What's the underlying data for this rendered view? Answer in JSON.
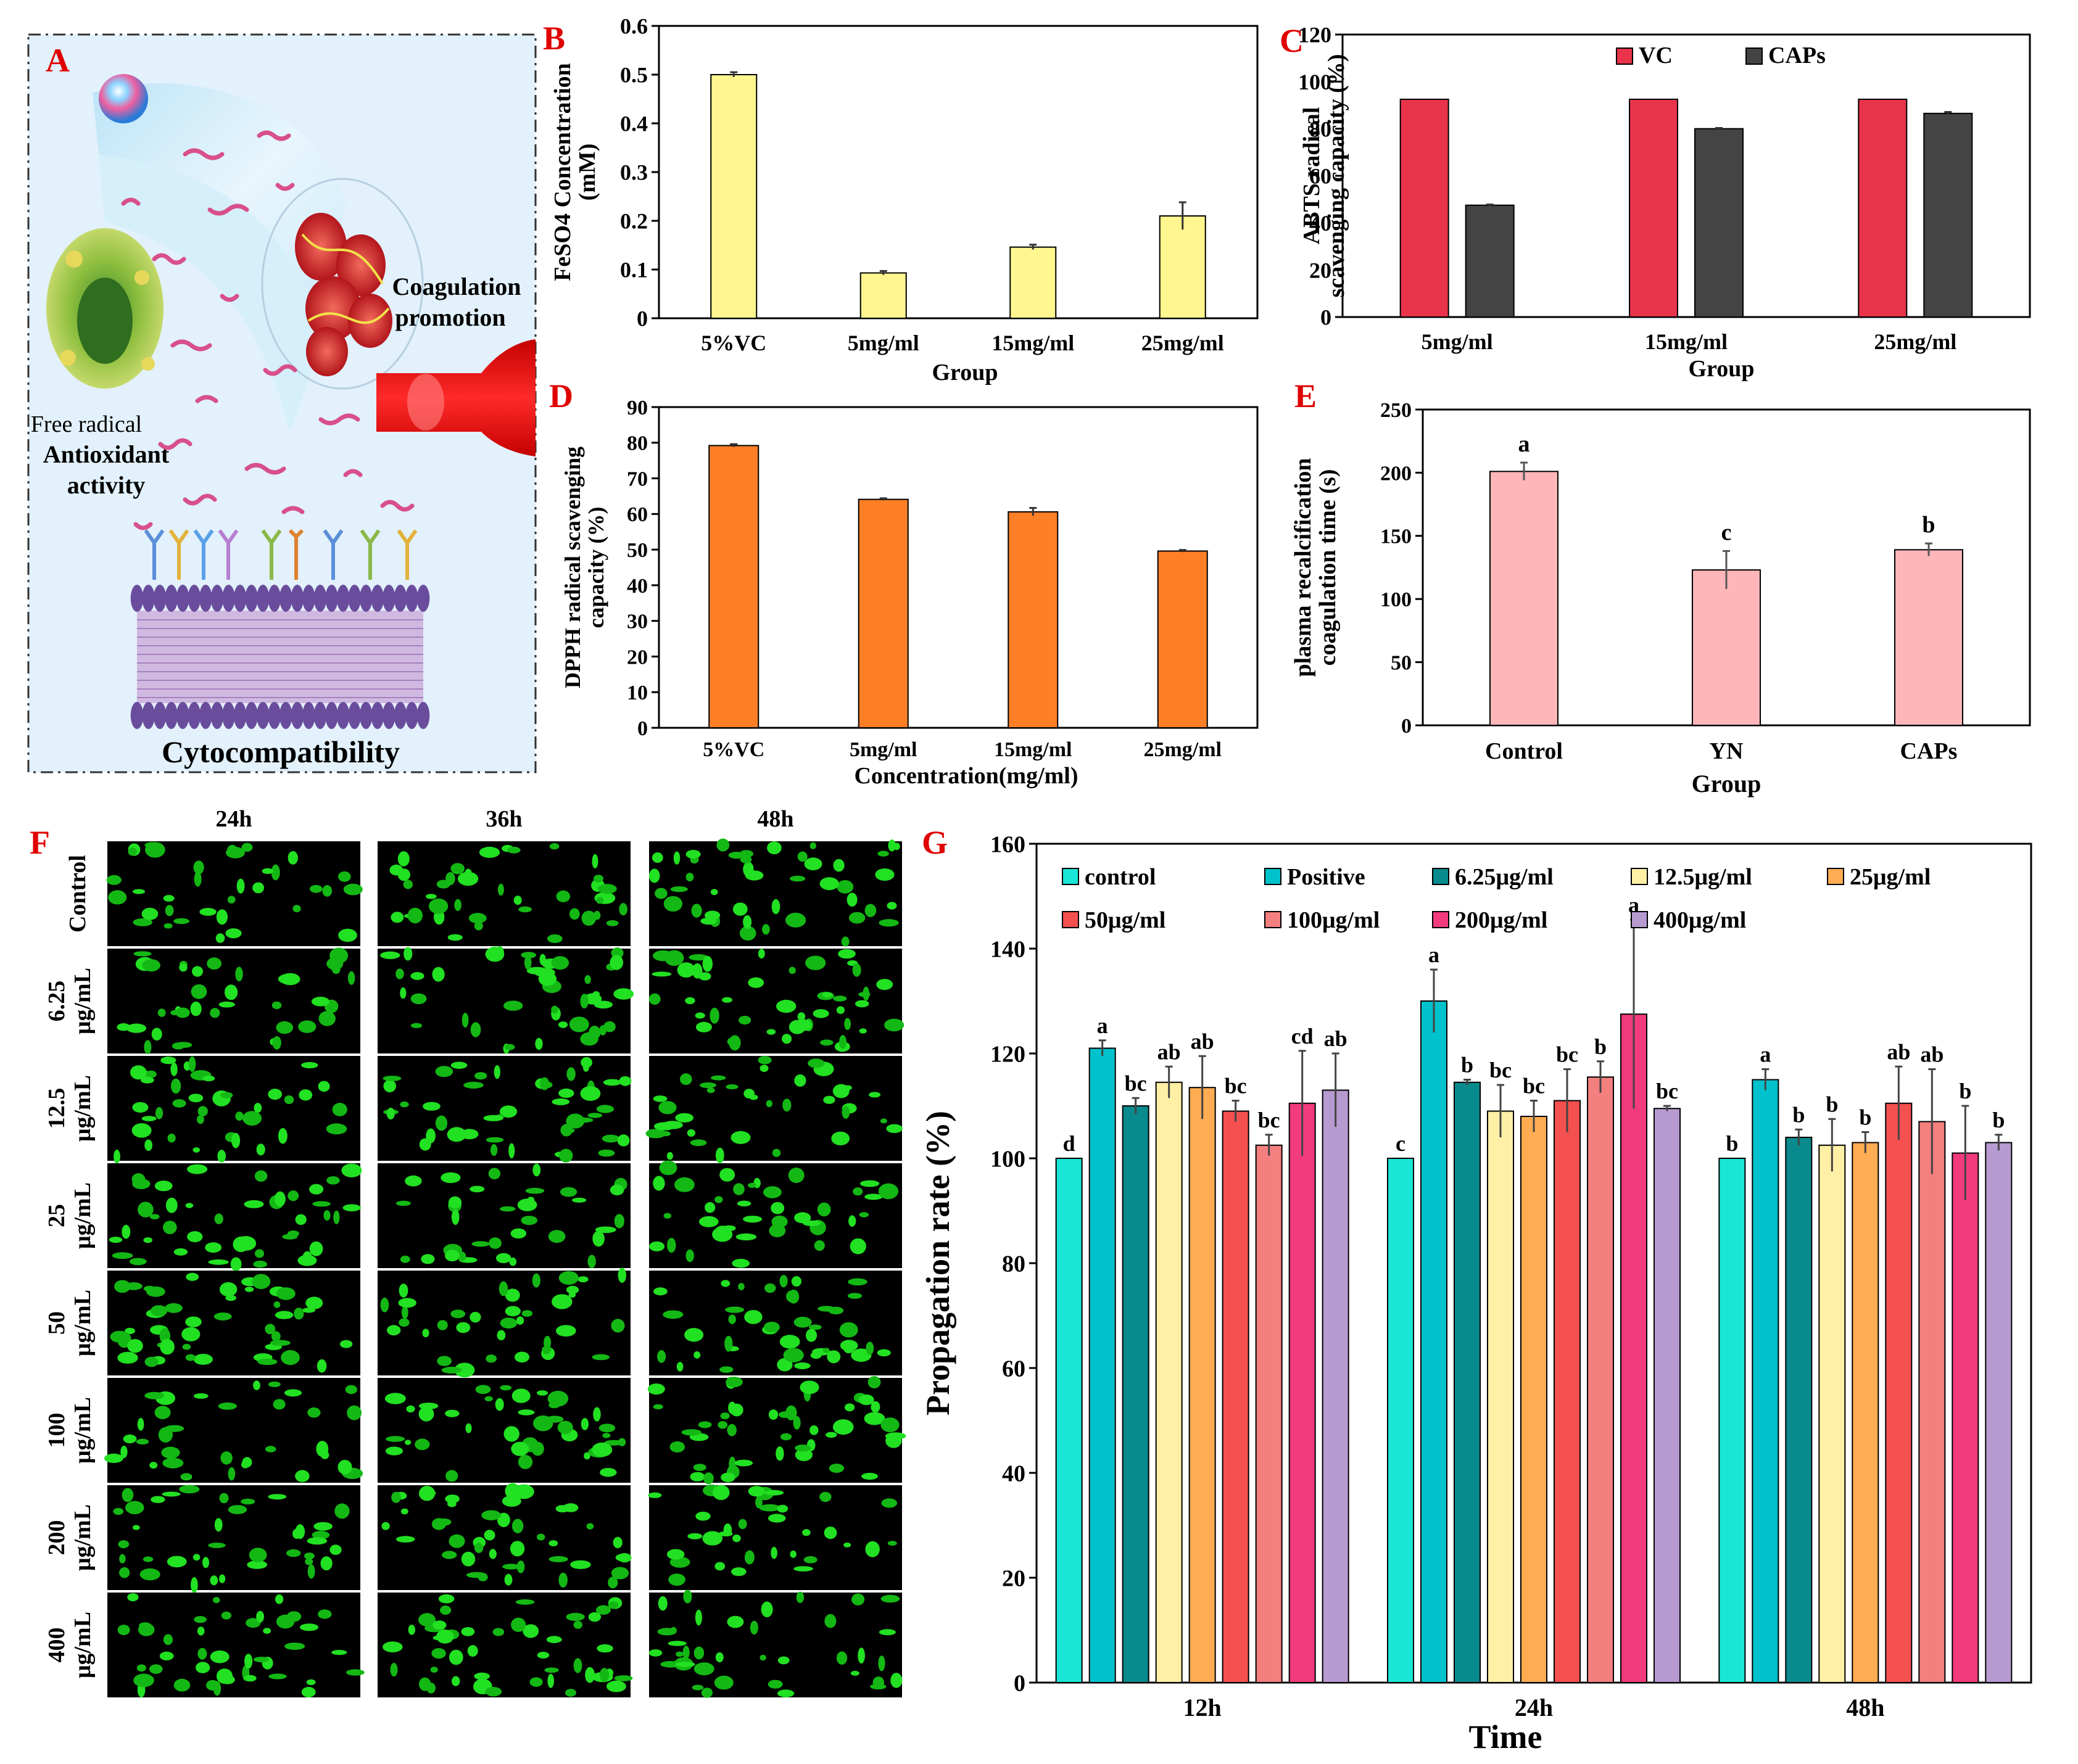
{
  "panel_a": {
    "letter": "A",
    "label_coagulation_1": "Coagulation",
    "label_coagulation_2": "promotion",
    "label_free_radical": "Free radical",
    "label_antioxidant_1": "Antioxidant",
    "label_antioxidant_2": "activity",
    "label_cyto": "Cytocompatibility"
  },
  "panel_f": {
    "letter": "F",
    "columns": [
      "24h",
      "36h",
      "48h"
    ],
    "rows": [
      [
        "Control"
      ],
      [
        "6.25",
        "μg/mL"
      ],
      [
        "12.5",
        "μg/mL"
      ],
      [
        "25",
        "μg/mL"
      ],
      [
        "50",
        "μg/mL"
      ],
      [
        "100",
        "μg/mL"
      ],
      [
        "200",
        "μg/mL"
      ],
      [
        "400",
        "μg/mL"
      ]
    ]
  },
  "chart_data": [
    {
      "id": "B",
      "letter": "B",
      "type": "bar",
      "categories": [
        "5%VC",
        "5mg/ml",
        "15mg/ml",
        "25mg/ml"
      ],
      "series": [
        {
          "name": "FeSO4",
          "values": [
            0.5,
            0.093,
            0.146,
            0.21
          ],
          "errors": [
            0.005,
            0.004,
            0.005,
            0.028
          ],
          "color": "#fff68f"
        }
      ],
      "xlabel": "Group",
      "ylabel": [
        "FeSO4  Concentration",
        "(mM)"
      ],
      "ylim": [
        0,
        0.6
      ],
      "yticks": [
        0,
        0.1,
        0.2,
        0.3,
        0.4,
        0.5,
        0.6
      ],
      "ytick_labels": [
        "0",
        "0.1",
        "0.2",
        "0.3",
        "0.4",
        "0.5",
        "0.6"
      ]
    },
    {
      "id": "C",
      "letter": "C",
      "type": "bar",
      "categories": [
        "5mg/ml",
        "15mg/ml",
        "25mg/ml"
      ],
      "series": [
        {
          "name": "VC",
          "values": [
            92.5,
            92.5,
            92.5
          ],
          "errors": [
            0,
            0,
            0
          ],
          "color": "#e8334a"
        },
        {
          "name": "CAPs",
          "values": [
            47.5,
            80,
            86.5
          ],
          "errors": [
            0.3,
            0.3,
            0.6
          ],
          "color": "#444444"
        }
      ],
      "xlabel": "Group",
      "ylabel": [
        "ABTS radical",
        "scavenging capacity (%)"
      ],
      "ylim": [
        0,
        120
      ],
      "yticks": [
        0,
        20,
        40,
        60,
        80,
        100,
        120
      ],
      "ytick_labels": [
        "0",
        "20",
        "40",
        "60",
        "80",
        "100",
        "120"
      ],
      "legend": [
        "VC",
        "CAPs"
      ],
      "legend_placement": "top"
    },
    {
      "id": "D",
      "letter": "D",
      "type": "bar",
      "categories": [
        "5%VC",
        "5mg/ml",
        "15mg/ml",
        "25mg/ml"
      ],
      "series": [
        {
          "name": "DPPH",
          "values": [
            79.2,
            64.1,
            60.6,
            49.6
          ],
          "errors": [
            0.4,
            0.3,
            1.1,
            0.3
          ],
          "color": "#ff7f27"
        }
      ],
      "xlabel": "Concentration(mg/ml)",
      "ylabel": [
        "DPPH radical scavenging",
        "capacity (%)"
      ],
      "ylim": [
        0,
        90
      ],
      "yticks": [
        0,
        10,
        20,
        30,
        40,
        50,
        60,
        70,
        80,
        90
      ],
      "ytick_labels": [
        "0",
        "10",
        "20",
        "30",
        "40",
        "50",
        "60",
        "70",
        "80",
        "90"
      ]
    },
    {
      "id": "E",
      "letter": "E",
      "type": "bar",
      "categories": [
        "Control",
        "YN",
        "CAPs"
      ],
      "series": [
        {
          "name": "Time",
          "values": [
            201,
            123,
            139
          ],
          "errors": [
            7,
            15,
            5
          ],
          "color": "#ffb6b9"
        }
      ],
      "annotations": [
        "a",
        "c",
        "b"
      ],
      "xlabel": "Group",
      "ylabel": [
        "plasma recalcification",
        "coagulation time (s)"
      ],
      "ylim": [
        0,
        250
      ],
      "yticks": [
        0,
        50,
        100,
        150,
        200,
        250
      ],
      "ytick_labels": [
        "0",
        "50",
        "100",
        "150",
        "200",
        "250"
      ]
    },
    {
      "id": "G",
      "letter": "G",
      "type": "bar",
      "categories": [
        "12h",
        "24h",
        "48h"
      ],
      "series": [
        {
          "name": "control",
          "values": [
            100,
            100,
            100
          ],
          "errors": [
            0,
            0,
            0
          ],
          "labels": [
            "d",
            "c",
            "b"
          ],
          "color": "#19e6d6"
        },
        {
          "name": "Positive",
          "values": [
            121,
            130,
            115
          ],
          "errors": [
            1.5,
            6,
            2
          ],
          "labels": [
            "a",
            "a",
            "a"
          ],
          "color": "#00c2cc"
        },
        {
          "name": "6.25μg/ml",
          "values": [
            110,
            114.5,
            104
          ],
          "errors": [
            1.5,
            0.5,
            1.5
          ],
          "labels": [
            "bc",
            "b",
            "b"
          ],
          "color": "#098a8c"
        },
        {
          "name": "12.5μg/ml",
          "values": [
            114.5,
            109,
            102.5
          ],
          "errors": [
            3,
            5,
            5
          ],
          "labels": [
            "ab",
            "bc",
            "b"
          ],
          "color": "#fff0a5"
        },
        {
          "name": "25μg/ml",
          "values": [
            113.5,
            108,
            103
          ],
          "errors": [
            6,
            3,
            2
          ],
          "labels": [
            "ab",
            "bc",
            "b"
          ],
          "color": "#ffac52"
        },
        {
          "name": "50μg/ml",
          "values": [
            109,
            111,
            110.5
          ],
          "errors": [
            2,
            6,
            7
          ],
          "labels": [
            "bc",
            "bc",
            "ab"
          ],
          "color": "#f45050"
        },
        {
          "name": "100μg/ml",
          "values": [
            102.5,
            115.5,
            107
          ],
          "errors": [
            2,
            3,
            10
          ],
          "labels": [
            "bc",
            "b",
            "ab"
          ],
          "color": "#f47f7f"
        },
        {
          "name": "200μg/ml",
          "values": [
            110.5,
            127.5,
            101
          ],
          "errors": [
            10,
            18,
            9
          ],
          "labels": [
            "cd",
            "a",
            "b"
          ],
          "color": "#f23a7d"
        },
        {
          "name": "400μg/ml",
          "values": [
            113,
            109.5,
            103
          ],
          "errors": [
            7,
            0.5,
            1.5
          ],
          "labels": [
            "ab",
            "bc",
            "b"
          ],
          "color": "#b69ad0"
        }
      ],
      "xlabel": "Time",
      "ylabel": "Propagation rate (%)",
      "ylim": [
        0,
        160
      ],
      "yticks": [
        0,
        20,
        40,
        60,
        80,
        100,
        120,
        140,
        160
      ],
      "ytick_labels": [
        "0",
        "20",
        "40",
        "60",
        "80",
        "100",
        "120",
        "140",
        "160"
      ],
      "legend": [
        "control",
        "Positive",
        "6.25μg/ml",
        "12.5μg/ml",
        "25μg/ml",
        "50μg/ml",
        "100μg/ml",
        "200μg/ml",
        "400μg/ml"
      ],
      "legend_placement": "top"
    }
  ]
}
